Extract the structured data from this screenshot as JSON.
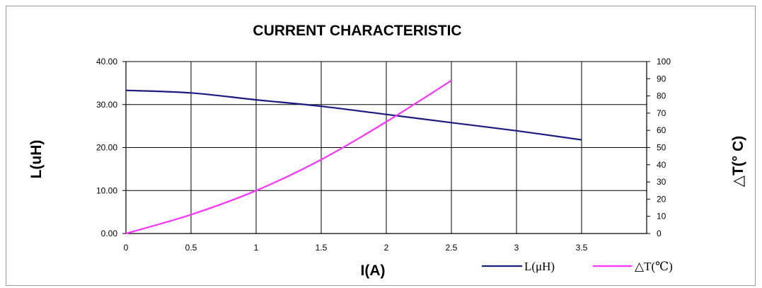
{
  "chart_data": {
    "type": "line",
    "title": "CURRENT CHARACTERISTIC",
    "xlabel": "I(A)",
    "ylabel": "L(uH)",
    "y2label": "△T(° C)",
    "xlim": [
      0,
      4
    ],
    "ylim": [
      0,
      40
    ],
    "y2lim": [
      0,
      100
    ],
    "x_ticks": [
      "0",
      "0.5",
      "1",
      "1.5",
      "2",
      "2.5",
      "3",
      "3.5"
    ],
    "y_ticks": [
      "0.00",
      "10.00",
      "20.00",
      "30.00",
      "40.00"
    ],
    "y2_ticks": [
      "0",
      "10",
      "20",
      "30",
      "40",
      "50",
      "60",
      "70",
      "80",
      "90",
      "100"
    ],
    "grid": true,
    "legend_position": "bottom-right",
    "series": [
      {
        "name": "L(μH)",
        "axis": "left",
        "color": "#1a1a80",
        "x": [
          0,
          0.5,
          1.0,
          1.5,
          2.0,
          2.5,
          3.0,
          3.5
        ],
        "y": [
          33.3,
          32.7,
          31.1,
          29.6,
          27.7,
          25.8,
          23.9,
          21.8
        ]
      },
      {
        "name": "△T(℃)",
        "axis": "right",
        "color": "#ff33ff",
        "x": [
          0,
          0.5,
          1.0,
          1.5,
          2.0,
          2.5
        ],
        "y": [
          0,
          11,
          25,
          43,
          65,
          89
        ]
      }
    ]
  }
}
